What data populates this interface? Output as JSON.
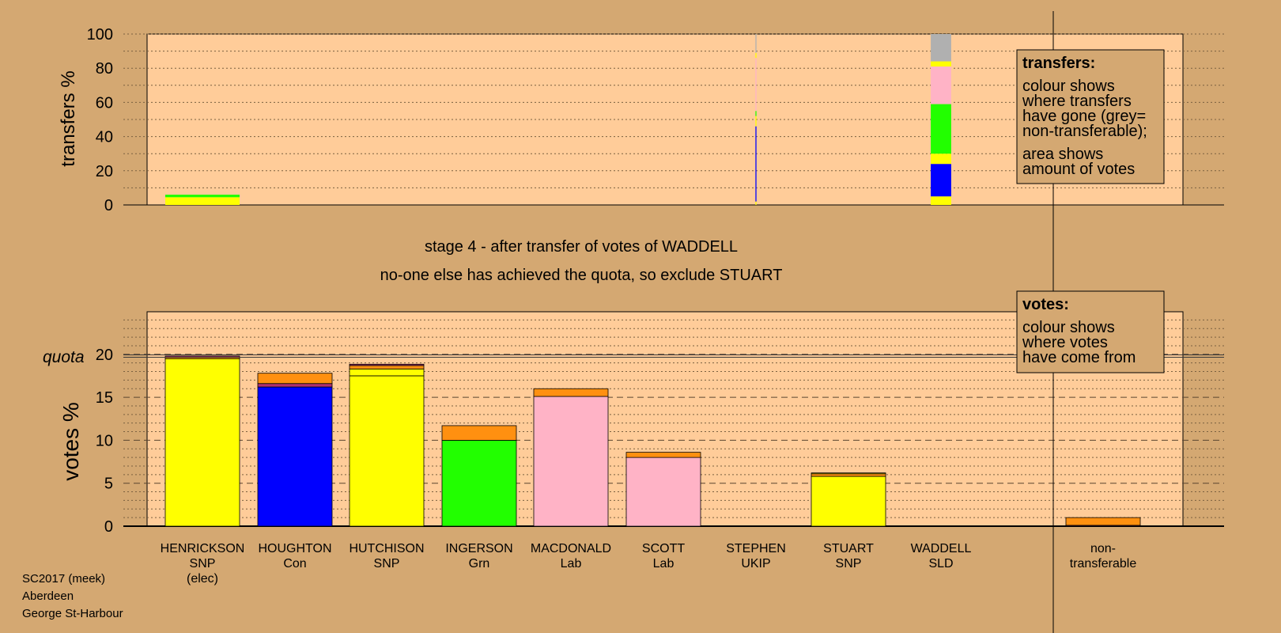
{
  "chart_data": [
    {
      "type": "bar",
      "title": "",
      "ylabel": "transfers %",
      "ylim": [
        0,
        100
      ],
      "yticks": [
        "0",
        "20",
        "40",
        "60",
        "80",
        "100"
      ],
      "categories": [
        "HENRICKSON",
        "HOUGHTON",
        "HUTCHISON",
        "INGERSON",
        "MACDONALD",
        "SCOTT",
        "STEPHEN",
        "STUART",
        "WADDELL"
      ],
      "stacks": [
        {
          "category": "HENRICKSON",
          "width_share": 0.11,
          "segments": [
            {
              "source": "yellow",
              "value": 4.5
            },
            {
              "source": "green",
              "value": 1.5
            }
          ]
        },
        {
          "category": "STEPHEN",
          "width_share": 0.03,
          "segments": [
            {
              "source": "yellow",
              "value": 2
            },
            {
              "source": "blue",
              "value": 44
            },
            {
              "source": "yellow",
              "value": 6
            },
            {
              "source": "green",
              "value": 3
            },
            {
              "source": "pink",
              "value": 31
            },
            {
              "source": "yellow",
              "value": 3
            },
            {
              "source": "grey",
              "value": 11
            }
          ]
        },
        {
          "category": "WADDELL",
          "width_share": 1.0,
          "segments": [
            {
              "source": "yellow",
              "value": 5
            },
            {
              "source": "blue",
              "value": 19
            },
            {
              "source": "yellow",
              "value": 6
            },
            {
              "source": "green",
              "value": 29
            },
            {
              "source": "pink",
              "value": 22
            },
            {
              "source": "yellow",
              "value": 3
            },
            {
              "source": "grey",
              "value": 16
            }
          ]
        }
      ],
      "legend": {
        "title": "transfers:",
        "lines_a": [
          "colour shows",
          "where transfers",
          "have gone (grey=",
          "non-transferable);"
        ],
        "lines_b": [
          "area shows",
          "amount of votes"
        ]
      }
    },
    {
      "type": "bar",
      "title": "",
      "ylabel": "votes %",
      "ylim": [
        0,
        25
      ],
      "yticks": [
        "0",
        "5",
        "10",
        "15",
        "20"
      ],
      "quota_label": "quota",
      "quota": 19.8,
      "categories": [
        "HENRICKSON",
        "HOUGHTON",
        "HUTCHISON",
        "INGERSON",
        "MACDONALD",
        "SCOTT",
        "STEPHEN",
        "STUART",
        "WADDELL",
        "non-transferable"
      ],
      "stacks": [
        {
          "category": "HENRICKSON",
          "segments": [
            {
              "source": "yellow",
              "value": 19.5
            },
            {
              "source": "orange",
              "value": 0.15
            },
            {
              "source": "purple",
              "value": 0.15
            }
          ]
        },
        {
          "category": "HOUGHTON",
          "segments": [
            {
              "source": "blue",
              "value": 16.2
            },
            {
              "source": "purple",
              "value": 0.4
            },
            {
              "source": "orange",
              "value": 1.2
            }
          ]
        },
        {
          "category": "HUTCHISON",
          "segments": [
            {
              "source": "yellow",
              "value": 17.5
            },
            {
              "source": "yellow",
              "value": 0.8
            },
            {
              "source": "orange",
              "value": 0.4
            },
            {
              "source": "purple",
              "value": 0.15
            }
          ]
        },
        {
          "category": "INGERSON",
          "segments": [
            {
              "source": "green",
              "value": 10.0
            },
            {
              "source": "orange",
              "value": 1.7
            }
          ]
        },
        {
          "category": "MACDONALD",
          "segments": [
            {
              "source": "pink",
              "value": 15.1
            },
            {
              "source": "orange",
              "value": 0.9
            }
          ]
        },
        {
          "category": "SCOTT",
          "segments": [
            {
              "source": "pink",
              "value": 8.0
            },
            {
              "source": "orange",
              "value": 0.6
            }
          ]
        },
        {
          "category": "STEPHEN",
          "segments": []
        },
        {
          "category": "STUART",
          "segments": [
            {
              "source": "yellow",
              "value": 5.8
            },
            {
              "source": "orange",
              "value": 0.3
            },
            {
              "source": "yellow",
              "value": 0.1
            }
          ]
        },
        {
          "category": "WADDELL",
          "segments": []
        },
        {
          "category": "non-transferable",
          "segments": [
            {
              "source": "purple",
              "value": 0.1
            },
            {
              "source": "orange",
              "value": 0.9
            }
          ]
        }
      ],
      "legend": {
        "title": "votes:",
        "lines_a": [
          "colour shows",
          "where votes",
          "have come from"
        ]
      }
    }
  ],
  "candidates": [
    {
      "name": "HENRICKSON",
      "party": "SNP",
      "note": "(elec)"
    },
    {
      "name": "HOUGHTON",
      "party": "Con",
      "note": ""
    },
    {
      "name": "HUTCHISON",
      "party": "SNP",
      "note": ""
    },
    {
      "name": "INGERSON",
      "party": "Grn",
      "note": ""
    },
    {
      "name": "MACDONALD",
      "party": "Lab",
      "note": ""
    },
    {
      "name": "SCOTT",
      "party": "Lab",
      "note": ""
    },
    {
      "name": "STEPHEN",
      "party": "UKIP",
      "note": ""
    },
    {
      "name": "STUART",
      "party": "SNP",
      "note": ""
    },
    {
      "name": "WADDELL",
      "party": "SLD",
      "note": ""
    }
  ],
  "nontransferable_label": [
    "non-",
    "transferable"
  ],
  "stage_text": "stage 4 - after transfer of votes of WADDELL",
  "status_text": "no-one else has achieved the quota, so exclude STUART",
  "footer": [
    "SC2017 (meek)",
    "Aberdeen",
    "George St-Harbour"
  ],
  "colors": {
    "page_bg": "#d4a872",
    "plot_bg": "#ffcc99",
    "yellow": "#ffff00",
    "blue": "#0000ff",
    "green": "#22ff00",
    "pink": "#ffb3c6",
    "orange": "#ff9010",
    "purple": "#b03070",
    "grey": "#b0b0b0"
  }
}
